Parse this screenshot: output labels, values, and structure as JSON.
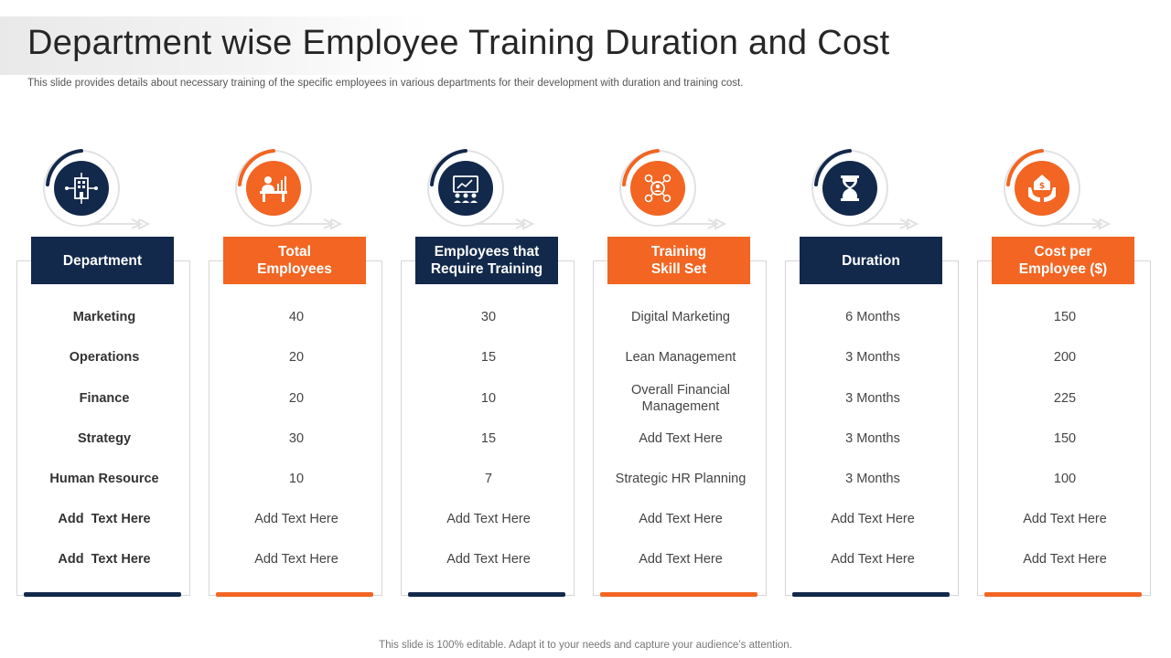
{
  "title": "Department wise Employee Training Duration and Cost",
  "subtitle": "This slide provides details about necessary training of the specific employees in various departments for their development with duration and training cost.",
  "footer": "This slide is 100% editable. Adapt it to your needs and capture your audience’s attention.",
  "colors": {
    "navy": "#13294b",
    "orange": "#f26522"
  },
  "columns": [
    {
      "header": "Department",
      "icon": "building-network-icon",
      "theme": "navy",
      "rows": [
        "Marketing",
        "Operations",
        "Finance",
        "Strategy",
        "Human Resource",
        "Add  Text Here",
        "Add  Text Here"
      ]
    },
    {
      "header": "Total\nEmployees",
      "icon": "employee-desk-icon",
      "theme": "orange",
      "rows": [
        "40",
        "20",
        "20",
        "30",
        "10",
        "Add Text Here",
        "Add Text Here"
      ]
    },
    {
      "header": "Employees that\nRequire Training",
      "icon": "training-presentation-icon",
      "theme": "navy",
      "rows": [
        "30",
        "15",
        "10",
        "15",
        "7",
        "Add Text Here",
        "Add Text Here"
      ]
    },
    {
      "header": "Training\nSkill Set",
      "icon": "skills-network-icon",
      "theme": "orange",
      "rows": [
        "Digital Marketing",
        "Lean Management",
        "Overall Financial Management",
        "Add Text Here",
        "Strategic HR Planning",
        "Add Text Here",
        "Add Text Here"
      ]
    },
    {
      "header": "Duration",
      "icon": "hourglass-icon",
      "theme": "navy",
      "rows": [
        "6 Months",
        "3 Months",
        "3 Months",
        "3 Months",
        "3 Months",
        "Add Text Here",
        "Add Text Here"
      ]
    },
    {
      "header": "Cost  per\nEmployee ($)",
      "icon": "money-hands-icon",
      "theme": "orange",
      "rows": [
        "150",
        "200",
        "225",
        "150",
        "100",
        "Add Text Here",
        "Add Text Here"
      ]
    }
  ]
}
